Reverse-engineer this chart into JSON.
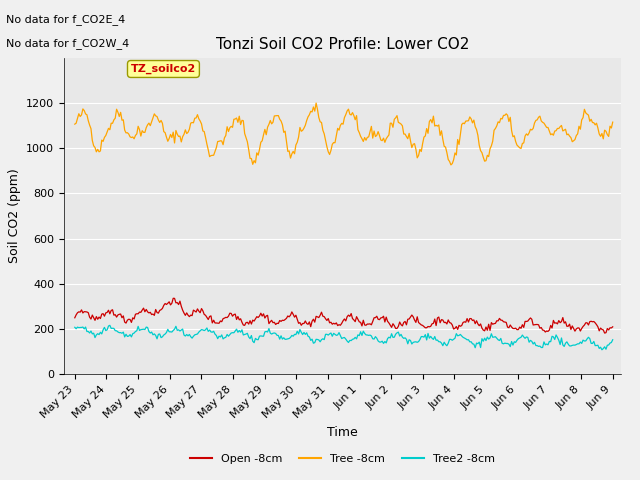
{
  "title": "Tonzi Soil CO2 Profile: Lower CO2",
  "ylabel": "Soil CO2 (ppm)",
  "xlabel": "Time",
  "annotations": [
    "No data for f_CO2E_4",
    "No data for f_CO2W_4"
  ],
  "legend_labels": [
    "Open -8cm",
    "Tree -8cm",
    "Tree2 -8cm"
  ],
  "legend_colors": [
    "#cc0000",
    "#ffa500",
    "#00cccc"
  ],
  "ylim": [
    0,
    1400
  ],
  "yticks": [
    0,
    200,
    400,
    600,
    800,
    1000,
    1200
  ],
  "n_points": 400,
  "background_color": "#e8e8e8",
  "grid_color": "#ffffff",
  "title_fontsize": 11,
  "axis_fontsize": 9,
  "tick_fontsize": 8,
  "annotation_box": {
    "label": "TZ_soilco2",
    "color": "#ffff99",
    "edgecolor": "#999900"
  },
  "days_labels": [
    "May 23",
    "May 24",
    "May 25",
    "May 26",
    "May 27",
    "May 28",
    "May 29",
    "May 30",
    "May 31",
    "Jun 1",
    "Jun 2",
    "Jun 3",
    "Jun 4",
    "Jun 5",
    "Jun 6",
    "Jun 7",
    "Jun 8",
    "Jun 9"
  ]
}
